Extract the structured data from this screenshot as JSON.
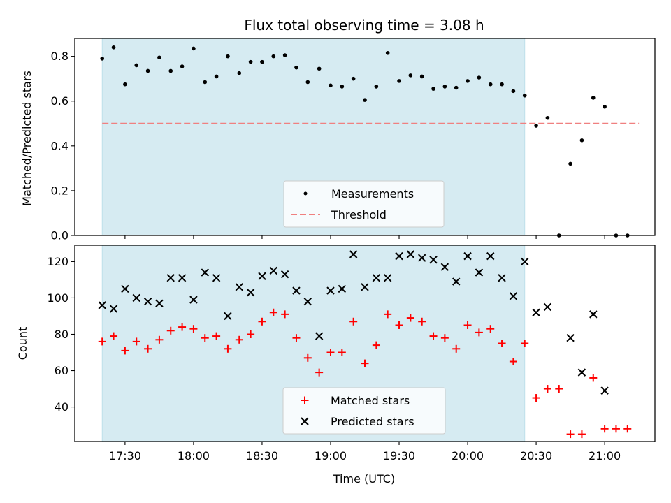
{
  "chart_data": [
    {
      "type": "scatter",
      "title": "Flux total observing time = 3.08 h",
      "ylabel": "Matched/Predicted stars",
      "xlabel": "",
      "ylim": [
        0,
        0.88
      ],
      "yticks": [
        0.0,
        0.2,
        0.4,
        0.6,
        0.8
      ],
      "ytick_labels": [
        "0.0",
        "0.2",
        "0.4",
        "0.6",
        "0.8"
      ],
      "shaded_interval": [
        "17:20",
        "20:25"
      ],
      "colors": {
        "shade": "#add8e6",
        "measurement": "#000000",
        "threshold": "#f08080"
      },
      "threshold": {
        "name": "Threshold",
        "y": 0.5,
        "x_start": "17:20",
        "x_end": "21:15"
      },
      "series": [
        {
          "name": "Measurements",
          "x": [
            "17:20",
            "17:25",
            "17:30",
            "17:35",
            "17:40",
            "17:45",
            "17:50",
            "17:55",
            "18:00",
            "18:05",
            "18:10",
            "18:15",
            "18:20",
            "18:25",
            "18:30",
            "18:35",
            "18:40",
            "18:45",
            "18:50",
            "18:55",
            "19:00",
            "19:05",
            "19:10",
            "19:15",
            "19:20",
            "19:25",
            "19:30",
            "19:35",
            "19:40",
            "19:45",
            "19:50",
            "19:55",
            "20:00",
            "20:05",
            "20:10",
            "20:15",
            "20:20",
            "20:25",
            "20:30",
            "20:35",
            "20:40",
            "20:45",
            "20:50",
            "20:55",
            "21:00",
            "21:05",
            "21:10"
          ],
          "y": [
            0.79,
            0.84,
            0.675,
            0.76,
            0.735,
            0.795,
            0.735,
            0.755,
            0.835,
            0.685,
            0.71,
            0.8,
            0.725,
            0.775,
            0.775,
            0.8,
            0.805,
            0.75,
            0.685,
            0.745,
            0.67,
            0.665,
            0.7,
            0.605,
            0.665,
            0.815,
            0.69,
            0.715,
            0.71,
            0.655,
            0.665,
            0.66,
            0.69,
            0.705,
            0.675,
            0.675,
            0.645,
            0.625,
            0.49,
            0.525,
            0.0,
            0.32,
            0.425,
            0.615,
            0.575,
            0.0,
            0.0
          ]
        }
      ],
      "legend": {
        "placement": "lower-center",
        "entries": [
          "Measurements",
          "Threshold"
        ]
      }
    },
    {
      "type": "scatter",
      "title": "",
      "ylabel": "Count",
      "xlabel": "Time (UTC)",
      "ylim": [
        21,
        129
      ],
      "yticks": [
        40,
        60,
        80,
        100,
        120
      ],
      "ytick_labels": [
        "40",
        "60",
        "80",
        "100",
        "120"
      ],
      "xlim": [
        "17:08",
        "21:22"
      ],
      "xticks": [
        "17:30",
        "18:00",
        "18:30",
        "19:00",
        "19:30",
        "20:00",
        "20:30",
        "21:00"
      ],
      "shaded_interval": [
        "17:20",
        "20:25"
      ],
      "colors": {
        "shade": "#add8e6",
        "matched": "#ff0000",
        "predicted": "#000000"
      },
      "series": [
        {
          "name": "Matched stars",
          "marker": "plus",
          "x": [
            "17:20",
            "17:25",
            "17:30",
            "17:35",
            "17:40",
            "17:45",
            "17:50",
            "17:55",
            "18:00",
            "18:05",
            "18:10",
            "18:15",
            "18:20",
            "18:25",
            "18:30",
            "18:35",
            "18:40",
            "18:45",
            "18:50",
            "18:55",
            "19:00",
            "19:05",
            "19:10",
            "19:15",
            "19:20",
            "19:25",
            "19:30",
            "19:35",
            "19:40",
            "19:45",
            "19:50",
            "19:55",
            "20:00",
            "20:05",
            "20:10",
            "20:15",
            "20:20",
            "20:25",
            "20:30",
            "20:35",
            "20:40",
            "20:45",
            "20:50",
            "20:55",
            "21:00",
            "21:05",
            "21:10"
          ],
          "y": [
            76,
            79,
            71,
            76,
            72,
            77,
            82,
            84,
            83,
            78,
            79,
            72,
            77,
            80,
            87,
            92,
            91,
            78,
            67,
            59,
            70,
            70,
            87,
            64,
            74,
            91,
            85,
            89,
            87,
            79,
            78,
            72,
            85,
            81,
            83,
            75,
            65,
            75,
            45,
            50,
            50,
            25,
            25,
            56,
            28,
            28,
            28
          ]
        },
        {
          "name": "Predicted stars",
          "marker": "x",
          "x": [
            "17:20",
            "17:25",
            "17:30",
            "17:35",
            "17:40",
            "17:45",
            "17:50",
            "17:55",
            "18:00",
            "18:05",
            "18:10",
            "18:15",
            "18:20",
            "18:25",
            "18:30",
            "18:35",
            "18:40",
            "18:45",
            "18:50",
            "18:55",
            "19:00",
            "19:05",
            "19:10",
            "19:15",
            "19:20",
            "19:25",
            "19:30",
            "19:35",
            "19:40",
            "19:45",
            "19:50",
            "19:55",
            "20:00",
            "20:05",
            "20:10",
            "20:15",
            "20:20",
            "20:25",
            "20:30",
            "20:35",
            "20:45",
            "20:50",
            "20:55",
            "21:00"
          ],
          "y": [
            96,
            94,
            105,
            100,
            98,
            97,
            111,
            111,
            99,
            114,
            111,
            90,
            106,
            103,
            112,
            115,
            113,
            104,
            98,
            79,
            104,
            105,
            124,
            106,
            111,
            111,
            123,
            124,
            122,
            121,
            117,
            109,
            123,
            114,
            123,
            111,
            101,
            120,
            92,
            95,
            78,
            59,
            91,
            49
          ]
        }
      ],
      "legend": {
        "placement": "lower-center",
        "entries": [
          "Matched stars",
          "Predicted stars"
        ]
      }
    }
  ]
}
